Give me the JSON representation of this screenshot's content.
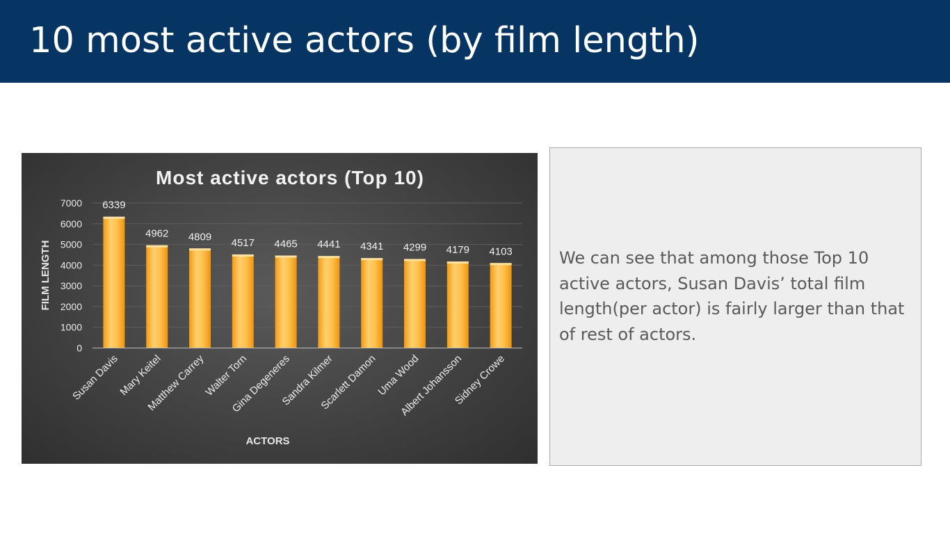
{
  "slide": {
    "title": "10 most active actors (by film length)",
    "note": "We can see that among those Top 10 active actors, Susan Davis’ total film length(per actor) is fairly larger than that of rest of actors."
  },
  "colors": {
    "header_bg": "#063563",
    "bar_fill": "#f5a623",
    "chart_bg": "#404040",
    "note_bg": "#eeeeee"
  },
  "chart_data": {
    "type": "bar",
    "title": "Most active actors (Top 10)",
    "xlabel": "ACTORS",
    "ylabel": "FILM LENGTH",
    "categories": [
      "Susan Davis",
      "Mary Keitel",
      "Matthew Carrey",
      "Walter Torn",
      "Gina Degeneres",
      "Sandra Kilmer",
      "Scarlett Damon",
      "Uma Wood",
      "Albert Johansson",
      "Sidney Crowe"
    ],
    "values": [
      6339,
      4962,
      4809,
      4517,
      4465,
      4441,
      4341,
      4299,
      4179,
      4103
    ],
    "ylim": [
      0,
      7000
    ],
    "yticks": [
      0,
      1000,
      2000,
      3000,
      4000,
      5000,
      6000,
      7000
    ],
    "data_labels": true,
    "grid": true,
    "legend": "none"
  }
}
